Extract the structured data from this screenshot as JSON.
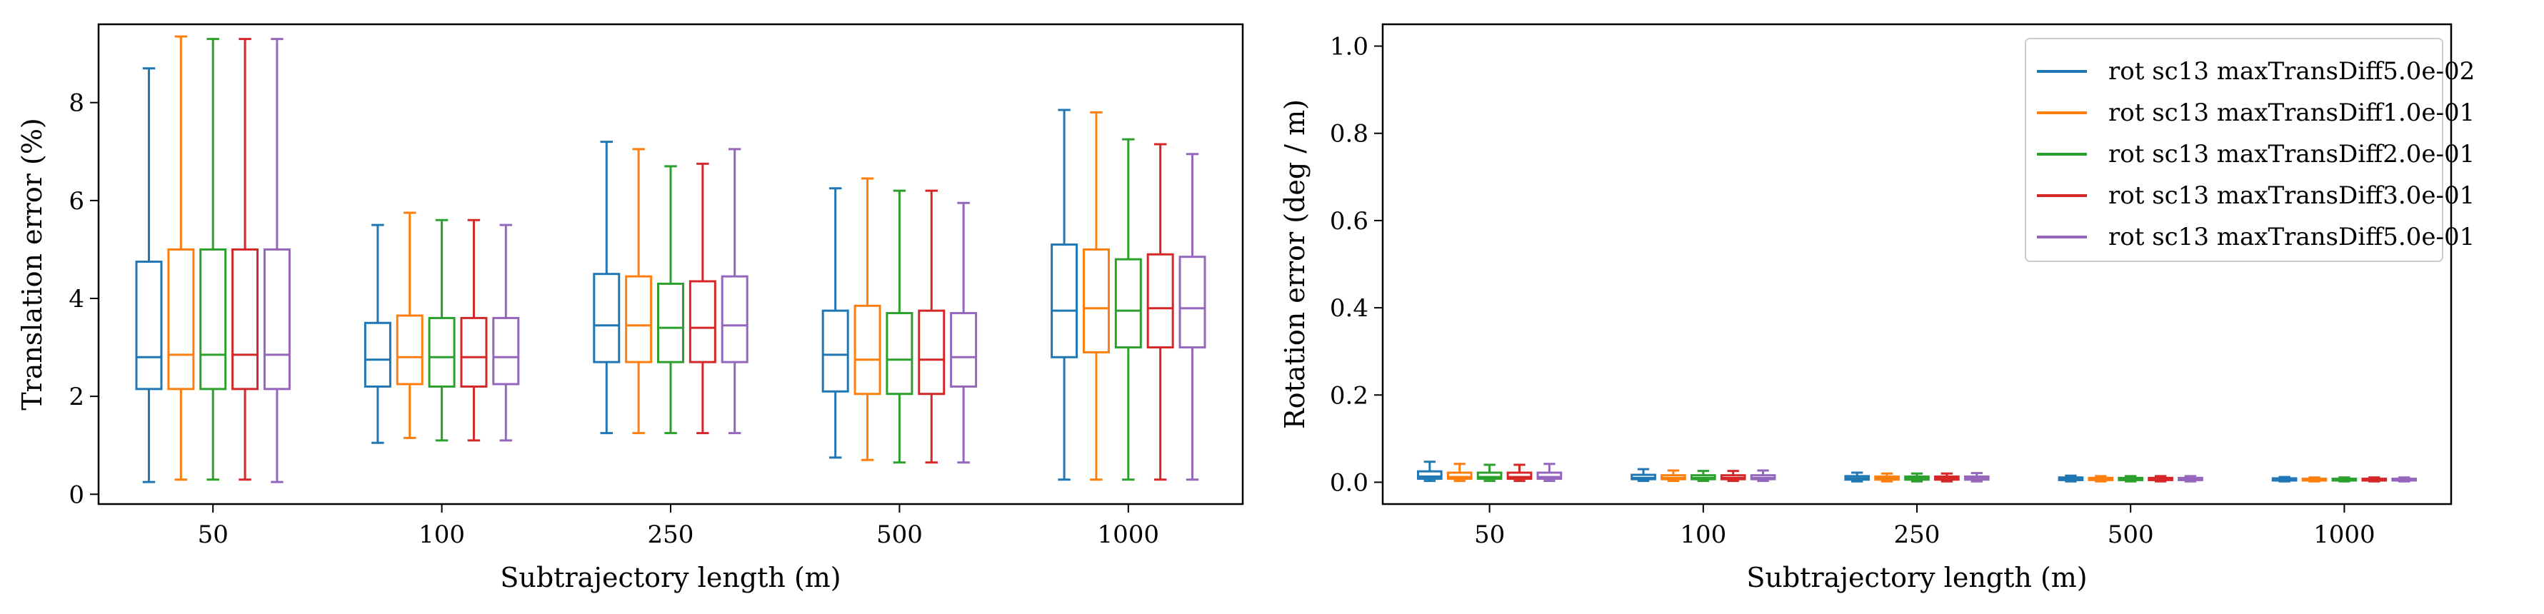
{
  "chart_data": [
    {
      "type": "box",
      "xlabel": "Subtrajectory length (m)",
      "ylabel": "Translation error (%)",
      "categories": [
        "50",
        "100",
        "250",
        "500",
        "1000"
      ],
      "ylim": [
        -0.2,
        9.6
      ],
      "yticks": [
        0,
        2,
        4,
        6,
        8
      ],
      "series": [
        {
          "color": "#1f77b4",
          "boxes": [
            {
              "whislo": 0.25,
              "q1": 2.15,
              "med": 2.8,
              "q3": 4.75,
              "whishi": 8.7
            },
            {
              "whislo": 1.05,
              "q1": 2.2,
              "med": 2.75,
              "q3": 3.5,
              "whishi": 5.5
            },
            {
              "whislo": 1.25,
              "q1": 2.7,
              "med": 3.45,
              "q3": 4.5,
              "whishi": 7.2
            },
            {
              "whislo": 0.75,
              "q1": 2.1,
              "med": 2.85,
              "q3": 3.75,
              "whishi": 6.25
            },
            {
              "whislo": 0.3,
              "q1": 2.8,
              "med": 3.75,
              "q3": 5.1,
              "whishi": 7.85
            }
          ]
        },
        {
          "color": "#ff7f0e",
          "boxes": [
            {
              "whislo": 0.3,
              "q1": 2.15,
              "med": 2.85,
              "q3": 5.0,
              "whishi": 9.35
            },
            {
              "whislo": 1.15,
              "q1": 2.25,
              "med": 2.8,
              "q3": 3.65,
              "whishi": 5.75
            },
            {
              "whislo": 1.25,
              "q1": 2.7,
              "med": 3.45,
              "q3": 4.45,
              "whishi": 7.05
            },
            {
              "whislo": 0.7,
              "q1": 2.05,
              "med": 2.75,
              "q3": 3.85,
              "whishi": 6.45
            },
            {
              "whislo": 0.3,
              "q1": 2.9,
              "med": 3.8,
              "q3": 5.0,
              "whishi": 7.8
            }
          ]
        },
        {
          "color": "#2ca02c",
          "boxes": [
            {
              "whislo": 0.3,
              "q1": 2.15,
              "med": 2.85,
              "q3": 5.0,
              "whishi": 9.3
            },
            {
              "whislo": 1.1,
              "q1": 2.2,
              "med": 2.8,
              "q3": 3.6,
              "whishi": 5.6
            },
            {
              "whislo": 1.25,
              "q1": 2.7,
              "med": 3.4,
              "q3": 4.3,
              "whishi": 6.7
            },
            {
              "whislo": 0.65,
              "q1": 2.05,
              "med": 2.75,
              "q3": 3.7,
              "whishi": 6.2
            },
            {
              "whislo": 0.3,
              "q1": 3.0,
              "med": 3.75,
              "q3": 4.8,
              "whishi": 7.25
            }
          ]
        },
        {
          "color": "#d62728",
          "boxes": [
            {
              "whislo": 0.3,
              "q1": 2.15,
              "med": 2.85,
              "q3": 5.0,
              "whishi": 9.3
            },
            {
              "whislo": 1.1,
              "q1": 2.2,
              "med": 2.8,
              "q3": 3.6,
              "whishi": 5.6
            },
            {
              "whislo": 1.25,
              "q1": 2.7,
              "med": 3.4,
              "q3": 4.35,
              "whishi": 6.75
            },
            {
              "whislo": 0.65,
              "q1": 2.05,
              "med": 2.75,
              "q3": 3.75,
              "whishi": 6.2
            },
            {
              "whislo": 0.3,
              "q1": 3.0,
              "med": 3.8,
              "q3": 4.9,
              "whishi": 7.15
            }
          ]
        },
        {
          "color": "#9467bd",
          "boxes": [
            {
              "whislo": 0.25,
              "q1": 2.15,
              "med": 2.85,
              "q3": 5.0,
              "whishi": 9.3
            },
            {
              "whislo": 1.1,
              "q1": 2.25,
              "med": 2.8,
              "q3": 3.6,
              "whishi": 5.5
            },
            {
              "whislo": 1.25,
              "q1": 2.7,
              "med": 3.45,
              "q3": 4.45,
              "whishi": 7.05
            },
            {
              "whislo": 0.65,
              "q1": 2.2,
              "med": 2.8,
              "q3": 3.7,
              "whishi": 5.95
            },
            {
              "whislo": 0.3,
              "q1": 3.0,
              "med": 3.8,
              "q3": 4.85,
              "whishi": 6.95
            }
          ]
        }
      ]
    },
    {
      "type": "box",
      "xlabel": "Subtrajectory length (m)",
      "ylabel": "Rotation error (deg / m)",
      "categories": [
        "50",
        "100",
        "250",
        "500",
        "1000"
      ],
      "ylim": [
        -0.05,
        1.05
      ],
      "yticks": [
        "0.0",
        "0.2",
        "0.4",
        "0.6",
        "0.8",
        "1.0"
      ],
      "legend_position": "upper right",
      "series": [
        {
          "name": "rot sc13 maxTransDiff5.0e-02",
          "color": "#1f77b4",
          "boxes": [
            {
              "whislo": 0.003,
              "q1": 0.008,
              "med": 0.013,
              "q3": 0.025,
              "whishi": 0.047
            },
            {
              "whislo": 0.003,
              "q1": 0.007,
              "med": 0.01,
              "q3": 0.017,
              "whishi": 0.03
            },
            {
              "whislo": 0.002,
              "q1": 0.006,
              "med": 0.009,
              "q3": 0.014,
              "whishi": 0.022
            },
            {
              "whislo": 0.002,
              "q1": 0.005,
              "med": 0.007,
              "q3": 0.011,
              "whishi": 0.015
            },
            {
              "whislo": 0.002,
              "q1": 0.004,
              "med": 0.006,
              "q3": 0.009,
              "whishi": 0.012
            }
          ]
        },
        {
          "name": "rot sc13 maxTransDiff1.0e-01",
          "color": "#ff7f0e",
          "boxes": [
            {
              "whislo": 0.003,
              "q1": 0.008,
              "med": 0.012,
              "q3": 0.022,
              "whishi": 0.042
            },
            {
              "whislo": 0.003,
              "q1": 0.007,
              "med": 0.01,
              "q3": 0.016,
              "whishi": 0.027
            },
            {
              "whislo": 0.002,
              "q1": 0.006,
              "med": 0.009,
              "q3": 0.013,
              "whishi": 0.02
            },
            {
              "whislo": 0.002,
              "q1": 0.005,
              "med": 0.007,
              "q3": 0.01,
              "whishi": 0.014
            },
            {
              "whislo": 0.002,
              "q1": 0.004,
              "med": 0.006,
              "q3": 0.008,
              "whishi": 0.011
            }
          ]
        },
        {
          "name": "rot sc13 maxTransDiff2.0e-01",
          "color": "#2ca02c",
          "boxes": [
            {
              "whislo": 0.003,
              "q1": 0.008,
              "med": 0.012,
              "q3": 0.022,
              "whishi": 0.04
            },
            {
              "whislo": 0.003,
              "q1": 0.007,
              "med": 0.01,
              "q3": 0.016,
              "whishi": 0.026
            },
            {
              "whislo": 0.002,
              "q1": 0.006,
              "med": 0.009,
              "q3": 0.013,
              "whishi": 0.02
            },
            {
              "whislo": 0.002,
              "q1": 0.005,
              "med": 0.007,
              "q3": 0.01,
              "whishi": 0.014
            },
            {
              "whislo": 0.002,
              "q1": 0.004,
              "med": 0.006,
              "q3": 0.008,
              "whishi": 0.011
            }
          ]
        },
        {
          "name": "rot sc13 maxTransDiff3.0e-01",
          "color": "#d62728",
          "boxes": [
            {
              "whislo": 0.003,
              "q1": 0.008,
              "med": 0.012,
              "q3": 0.022,
              "whishi": 0.04
            },
            {
              "whislo": 0.003,
              "q1": 0.007,
              "med": 0.01,
              "q3": 0.016,
              "whishi": 0.026
            },
            {
              "whislo": 0.002,
              "q1": 0.006,
              "med": 0.009,
              "q3": 0.013,
              "whishi": 0.02
            },
            {
              "whislo": 0.002,
              "q1": 0.005,
              "med": 0.007,
              "q3": 0.01,
              "whishi": 0.014
            },
            {
              "whislo": 0.002,
              "q1": 0.004,
              "med": 0.006,
              "q3": 0.008,
              "whishi": 0.011
            }
          ]
        },
        {
          "name": "rot sc13 maxTransDiff5.0e-01",
          "color": "#9467bd",
          "boxes": [
            {
              "whislo": 0.003,
              "q1": 0.008,
              "med": 0.012,
              "q3": 0.022,
              "whishi": 0.042
            },
            {
              "whislo": 0.003,
              "q1": 0.007,
              "med": 0.01,
              "q3": 0.016,
              "whishi": 0.027
            },
            {
              "whislo": 0.002,
              "q1": 0.006,
              "med": 0.009,
              "q3": 0.013,
              "whishi": 0.021
            },
            {
              "whislo": 0.002,
              "q1": 0.005,
              "med": 0.007,
              "q3": 0.01,
              "whishi": 0.014
            },
            {
              "whislo": 0.002,
              "q1": 0.004,
              "med": 0.006,
              "q3": 0.008,
              "whishi": 0.011
            }
          ]
        }
      ]
    }
  ]
}
